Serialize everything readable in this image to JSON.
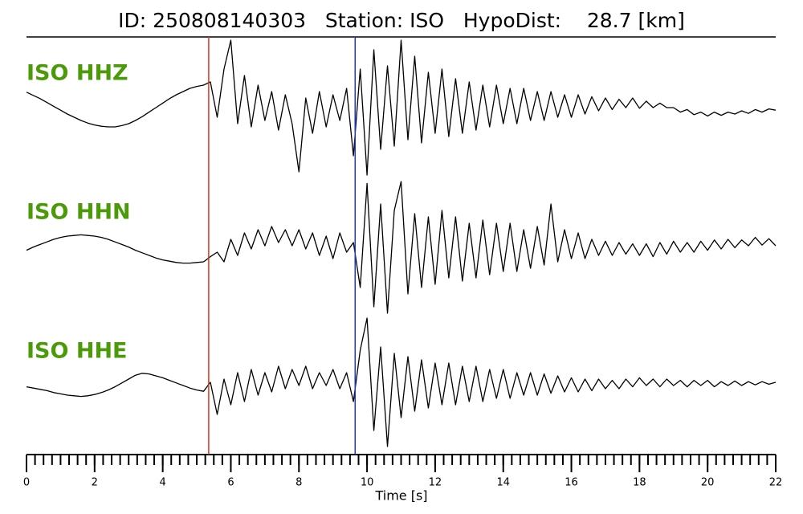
{
  "chart_data": {
    "type": "line",
    "title": "ID: 250808140303   Station: ISO   HypoDist:    28.7 [km]",
    "x_label": "Time [s]",
    "xlim": [
      0,
      22
    ],
    "xticks": [
      0,
      2,
      4,
      6,
      8,
      10,
      12,
      14,
      16,
      18,
      20,
      22
    ],
    "minor_tick_step": 0.25,
    "picks": [
      {
        "x": 5.35,
        "color": "#e8311f"
      },
      {
        "x": 9.65,
        "color": "#2233dd"
      }
    ],
    "x": [
      0,
      0.2,
      0.4,
      0.6,
      0.8,
      1,
      1.2,
      1.4,
      1.6,
      1.8,
      2,
      2.2,
      2.4,
      2.6,
      2.8,
      3,
      3.2,
      3.4,
      3.6,
      3.8,
      4,
      4.2,
      4.4,
      4.6,
      4.8,
      5,
      5.2,
      5.4,
      5.6,
      5.8,
      6,
      6.2,
      6.4,
      6.6,
      6.8,
      7,
      7.2,
      7.4,
      7.6,
      7.8,
      8,
      8.2,
      8.4,
      8.6,
      8.8,
      9,
      9.2,
      9.4,
      9.6,
      9.8,
      10,
      10.2,
      10.4,
      10.6,
      10.8,
      11,
      11.2,
      11.4,
      11.6,
      11.8,
      12,
      12.2,
      12.4,
      12.6,
      12.8,
      13,
      13.2,
      13.4,
      13.6,
      13.8,
      14,
      14.2,
      14.4,
      14.6,
      14.8,
      15,
      15.2,
      15.4,
      15.6,
      15.8,
      16,
      16.2,
      16.4,
      16.6,
      16.8,
      17,
      17.2,
      17.4,
      17.6,
      17.8,
      18,
      18.2,
      18.4,
      18.6,
      18.8,
      19,
      19.2,
      19.4,
      19.6,
      19.8,
      20,
      20.2,
      20.4,
      20.6,
      20.8,
      21,
      21.2,
      21.4,
      21.6,
      21.8,
      22
    ],
    "series": [
      {
        "name": "ISO HHZ",
        "color": "#000000",
        "values": [
          0.19,
          0.14,
          0.09,
          0.03,
          -0.03,
          -0.09,
          -0.15,
          -0.2,
          -0.25,
          -0.29,
          -0.32,
          -0.34,
          -0.35,
          -0.35,
          -0.33,
          -0.3,
          -0.25,
          -0.19,
          -0.12,
          -0.05,
          0.02,
          0.09,
          0.15,
          0.2,
          0.25,
          0.28,
          0.3,
          0.35,
          -0.2,
          0.55,
          1.0,
          -0.3,
          0.45,
          -0.35,
          0.3,
          -0.25,
          0.2,
          -0.4,
          0.15,
          -0.3,
          -1.05,
          0.1,
          -0.45,
          0.2,
          -0.35,
          0.15,
          -0.25,
          0.25,
          -0.8,
          0.55,
          -1.1,
          0.85,
          -0.7,
          0.6,
          -0.65,
          1.0,
          -0.55,
          0.75,
          -0.6,
          0.5,
          -0.45,
          0.55,
          -0.5,
          0.4,
          -0.45,
          0.35,
          -0.4,
          0.3,
          -0.35,
          0.3,
          -0.3,
          0.25,
          -0.3,
          0.25,
          -0.25,
          0.2,
          -0.25,
          0.2,
          -0.2,
          0.15,
          -0.2,
          0.15,
          -0.15,
          0.12,
          -0.1,
          0.1,
          -0.08,
          0.08,
          -0.05,
          0.1,
          -0.06,
          0.05,
          -0.05,
          0.02,
          -0.05,
          -0.05,
          -0.12,
          -0.08,
          -0.16,
          -0.12,
          -0.18,
          -0.12,
          -0.17,
          -0.12,
          -0.15,
          -0.1,
          -0.14,
          -0.08,
          -0.12,
          -0.07,
          -0.09
        ]
      },
      {
        "name": "ISO HHN",
        "color": "#000000",
        "values": [
          -0.02,
          0.03,
          0.07,
          0.11,
          0.15,
          0.18,
          0.2,
          0.21,
          0.22,
          0.21,
          0.2,
          0.18,
          0.15,
          0.11,
          0.07,
          0.03,
          -0.02,
          -0.06,
          -0.1,
          -0.14,
          -0.17,
          -0.19,
          -0.21,
          -0.22,
          -0.22,
          -0.21,
          -0.2,
          -0.12,
          -0.05,
          -0.2,
          0.15,
          -0.1,
          0.25,
          0.0,
          0.3,
          0.05,
          0.35,
          0.1,
          0.3,
          0.05,
          0.3,
          0.0,
          0.25,
          -0.1,
          0.2,
          -0.15,
          0.25,
          -0.05,
          0.1,
          -0.6,
          1.02,
          -0.9,
          0.7,
          -1.0,
          0.6,
          1.05,
          -0.7,
          0.55,
          -0.6,
          0.5,
          -0.55,
          0.6,
          -0.45,
          0.5,
          -0.5,
          0.4,
          -0.45,
          0.45,
          -0.4,
          0.4,
          -0.35,
          0.4,
          -0.35,
          0.3,
          -0.3,
          0.35,
          -0.25,
          0.7,
          -0.2,
          0.3,
          -0.15,
          0.25,
          -0.15,
          0.15,
          -0.1,
          0.12,
          -0.1,
          0.1,
          -0.08,
          0.08,
          -0.1,
          0.08,
          -0.12,
          0.1,
          -0.08,
          0.12,
          -0.05,
          0.1,
          -0.05,
          0.12,
          -0.02,
          0.14,
          0.0,
          0.15,
          0.02,
          0.14,
          0.05,
          0.18,
          0.06,
          0.16,
          0.05
        ]
      },
      {
        "name": "ISO HHE",
        "color": "#000000",
        "values": [
          -0.02,
          -0.04,
          -0.06,
          -0.08,
          -0.11,
          -0.13,
          -0.15,
          -0.16,
          -0.17,
          -0.16,
          -0.14,
          -0.11,
          -0.07,
          -0.02,
          0.04,
          0.1,
          0.16,
          0.19,
          0.18,
          0.15,
          0.12,
          0.08,
          0.04,
          0.0,
          -0.04,
          -0.07,
          -0.09,
          0.05,
          -0.45,
          0.1,
          -0.3,
          0.2,
          -0.25,
          0.25,
          -0.15,
          0.2,
          -0.1,
          0.3,
          -0.05,
          0.25,
          0.0,
          0.3,
          -0.05,
          0.2,
          0.0,
          0.25,
          -0.05,
          0.2,
          -0.25,
          0.55,
          1.05,
          -0.7,
          0.6,
          -0.95,
          0.5,
          -0.5,
          0.45,
          -0.4,
          0.4,
          -0.35,
          0.35,
          -0.3,
          0.35,
          -0.3,
          0.3,
          -0.25,
          0.3,
          -0.25,
          0.25,
          -0.2,
          0.25,
          -0.2,
          0.2,
          -0.15,
          0.2,
          -0.15,
          0.18,
          -0.12,
          0.15,
          -0.1,
          0.12,
          -0.1,
          0.1,
          -0.08,
          0.1,
          -0.05,
          0.08,
          -0.05,
          0.1,
          -0.02,
          0.12,
          0.0,
          0.1,
          -0.02,
          0.1,
          0.0,
          0.08,
          -0.02,
          0.08,
          0.0,
          0.08,
          -0.02,
          0.06,
          0.0,
          0.07,
          0.0,
          0.06,
          0.01,
          0.06,
          0.02,
          0.05
        ]
      }
    ]
  }
}
